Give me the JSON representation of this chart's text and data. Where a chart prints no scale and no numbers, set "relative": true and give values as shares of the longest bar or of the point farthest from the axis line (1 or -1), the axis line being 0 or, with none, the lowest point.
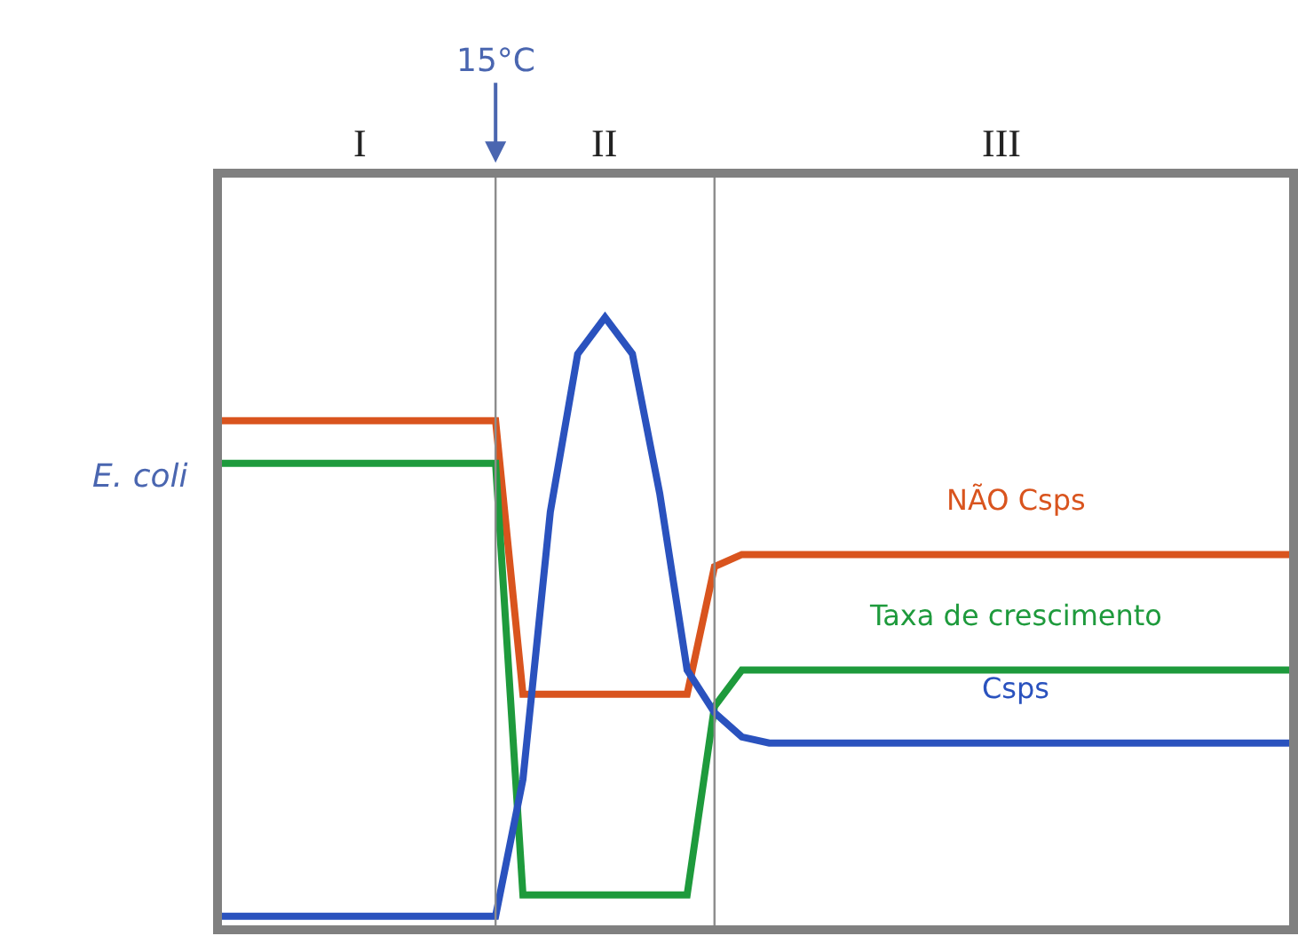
{
  "chart_data": {
    "type": "line",
    "relative": true,
    "ylabel": "E. coli",
    "categories": [
      null,
      null,
      null,
      null,
      null,
      null,
      null,
      null,
      null,
      null,
      null,
      null,
      null,
      null,
      null,
      null,
      null,
      null,
      null,
      null,
      null,
      null,
      null,
      null,
      null,
      null,
      null,
      null,
      null,
      null,
      null,
      null,
      null,
      null,
      null,
      null,
      null,
      null,
      null,
      null
    ],
    "series": [
      {
        "name": "NÃO Csps",
        "color": "#d9541e",
        "values": [
          0.83,
          0.83,
          0.83,
          0.83,
          0.83,
          0.83,
          0.83,
          0.83,
          0.83,
          0.83,
          0.83,
          0.38,
          0.38,
          0.38,
          0.38,
          0.38,
          0.38,
          0.38,
          0.59,
          0.61,
          0.61,
          0.61,
          0.61,
          0.61,
          0.61,
          0.61,
          0.61,
          0.61,
          0.61,
          0.61,
          0.61,
          0.61,
          0.61,
          0.61,
          0.61,
          0.61,
          0.61,
          0.61,
          0.61,
          0.61
        ]
      },
      {
        "name": "Taxa de crescimento",
        "color": "#1e9a3c",
        "values": [
          0.76,
          0.76,
          0.76,
          0.76,
          0.76,
          0.76,
          0.76,
          0.76,
          0.76,
          0.76,
          0.76,
          0.05,
          0.05,
          0.05,
          0.05,
          0.05,
          0.05,
          0.05,
          0.36,
          0.42,
          0.42,
          0.42,
          0.42,
          0.42,
          0.42,
          0.42,
          0.42,
          0.42,
          0.42,
          0.42,
          0.42,
          0.42,
          0.42,
          0.42,
          0.42,
          0.42,
          0.42,
          0.42,
          0.42,
          0.42
        ]
      },
      {
        "name": "Csps",
        "color": "#2a52be",
        "values": [
          0.015,
          0.015,
          0.015,
          0.015,
          0.015,
          0.015,
          0.015,
          0.015,
          0.015,
          0.015,
          0.015,
          0.24,
          0.68,
          0.94,
          1,
          0.94,
          0.71,
          0.42,
          0.35,
          0.31,
          0.3,
          0.3,
          0.3,
          0.3,
          0.3,
          0.3,
          0.3,
          0.3,
          0.3,
          0.3,
          0.3,
          0.3,
          0.3,
          0.3,
          0.3,
          0.3,
          0.3,
          0.3,
          0.3,
          0.3
        ]
      }
    ],
    "annotations": [
      "I",
      "II",
      "III",
      "15°C"
    ],
    "legend": false,
    "marker": "none",
    "line_style": "solid"
  }
}
